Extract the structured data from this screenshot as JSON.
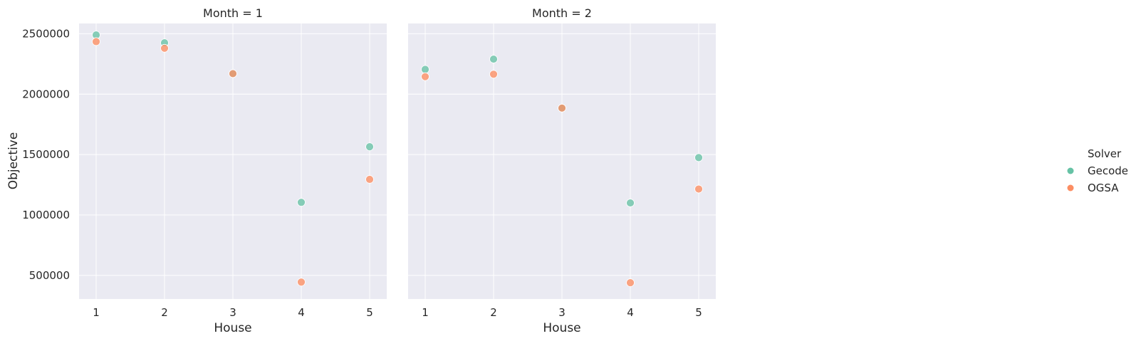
{
  "chart_data": {
    "type": "scatter",
    "facet_variable": "Month",
    "facets": [
      {
        "title": "Month = 1",
        "series": [
          {
            "name": "Gecode",
            "x": [
              1,
              2,
              3,
              4,
              5
            ],
            "y": [
              2490000,
              2425000,
              2170000,
              1105000,
              1565000
            ]
          },
          {
            "name": "OGSA",
            "x": [
              1,
              2,
              3,
              4,
              5
            ],
            "y": [
              2435000,
              2380000,
              2170000,
              445000,
              1295000
            ]
          }
        ]
      },
      {
        "title": "Month = 2",
        "series": [
          {
            "name": "Gecode",
            "x": [
              1,
              2,
              3,
              4,
              5
            ],
            "y": [
              2205000,
              2290000,
              1885000,
              1100000,
              1475000
            ]
          },
          {
            "name": "OGSA",
            "x": [
              1,
              2,
              3,
              4,
              5
            ],
            "y": [
              2145000,
              2165000,
              1885000,
              440000,
              1215000
            ]
          }
        ]
      }
    ],
    "xlabel": "House",
    "ylabel": "Objective",
    "x_ticks": [
      1,
      2,
      3,
      4,
      5
    ],
    "y_ticks": [
      500000,
      1000000,
      1500000,
      2000000,
      2500000
    ],
    "xlim": [
      0.75,
      5.25
    ],
    "ylim": [
      305000,
      2585000
    ],
    "grid": true,
    "legend": {
      "title": "Solver",
      "position": "right",
      "entries": [
        "Gecode",
        "OGSA"
      ]
    },
    "colors": {
      "Gecode": "#66c2a5",
      "OGSA": "#fc8d62",
      "panel_bg": "#eaeaf2",
      "grid": "#ffffff"
    }
  }
}
